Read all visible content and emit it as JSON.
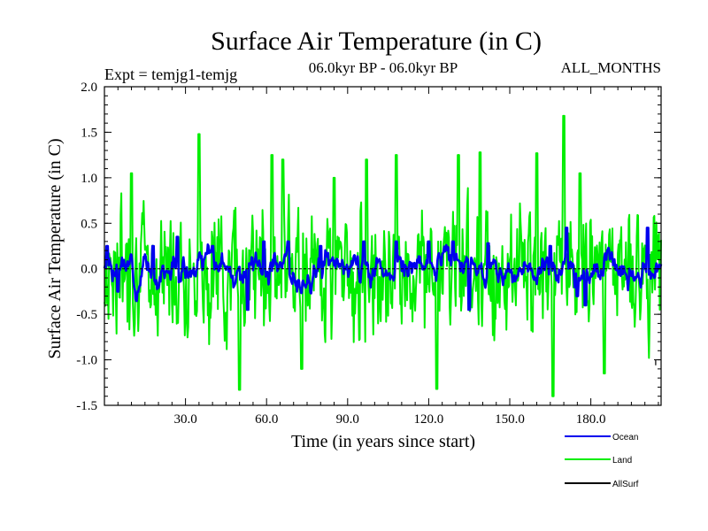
{
  "chart_data": {
    "type": "line",
    "title": "Surface Air Temperature (in C)",
    "experiment": "Expt = temjg1-temjg",
    "period": "06.0kyr BP - 06.0kyr BP",
    "months": "ALL_MONTHS",
    "xlabel": "Time (in years since start)",
    "ylabel": "Surface Air Temperature (in C)",
    "xlim": [
      0,
      206
    ],
    "ylim": [
      -1.5,
      2.0
    ],
    "x_ticks": [
      30,
      60,
      90,
      120,
      150,
      180
    ],
    "x_tick_labels": [
      "30.0",
      "60.0",
      "90.0",
      "120.0",
      "150.0",
      "180.0"
    ],
    "y_ticks": [
      -1.5,
      -1.0,
      -0.5,
      0.0,
      0.5,
      1.0,
      1.5,
      2.0
    ],
    "y_tick_labels": [
      "-1.5",
      "-1.0",
      "-0.5",
      "0.0",
      "0.5",
      "1.0",
      "1.5",
      "2.0"
    ],
    "reference_line": 0.0,
    "series": [
      {
        "name": "Land",
        "color": "#00ee00",
        "seed": 7,
        "amplitude": 0.45,
        "smooth": 0.3,
        "features": [
          [
            10,
            1.05
          ],
          [
            35,
            1.48
          ],
          [
            50,
            -1.33
          ],
          [
            62,
            1.25
          ],
          [
            66,
            1.2
          ],
          [
            73,
            -1.1
          ],
          [
            85,
            1.0
          ],
          [
            97,
            1.2
          ],
          [
            108,
            1.25
          ],
          [
            123,
            -1.32
          ],
          [
            131,
            1.25
          ],
          [
            139,
            1.28
          ],
          [
            160,
            1.27
          ],
          [
            166,
            -1.4
          ],
          [
            170,
            1.68
          ],
          [
            176,
            1.05
          ],
          [
            185,
            -1.15
          ]
        ]
      },
      {
        "name": "Ocean",
        "color": "#0000ee",
        "seed": 3,
        "amplitude": 0.1,
        "smooth": 0.85,
        "features": [
          [
            1,
            0.25
          ],
          [
            5,
            -0.25
          ],
          [
            18,
            0.25
          ],
          [
            27,
            0.35
          ],
          [
            40,
            0.25
          ],
          [
            53,
            -0.45
          ],
          [
            59,
            0.3
          ],
          [
            68,
            0.3
          ],
          [
            80,
            0.25
          ],
          [
            96,
            0.3
          ],
          [
            108,
            0.3
          ],
          [
            120,
            0.3
          ],
          [
            129,
            0.3
          ],
          [
            135,
            -0.45
          ],
          [
            142,
            0.28
          ],
          [
            165,
            0.25
          ],
          [
            171,
            0.45
          ],
          [
            175,
            -0.3
          ],
          [
            178,
            -0.4
          ],
          [
            201,
            0.45
          ]
        ]
      },
      {
        "name": "AllSurf",
        "color": "#000000",
        "seed": 0,
        "amplitude": 0,
        "smooth": 0,
        "features": [
          [
            204,
            -1.0
          ]
        ]
      }
    ],
    "legend": [
      "Ocean",
      "Land",
      "AllSurf"
    ],
    "legend_position": "bottom-right"
  }
}
